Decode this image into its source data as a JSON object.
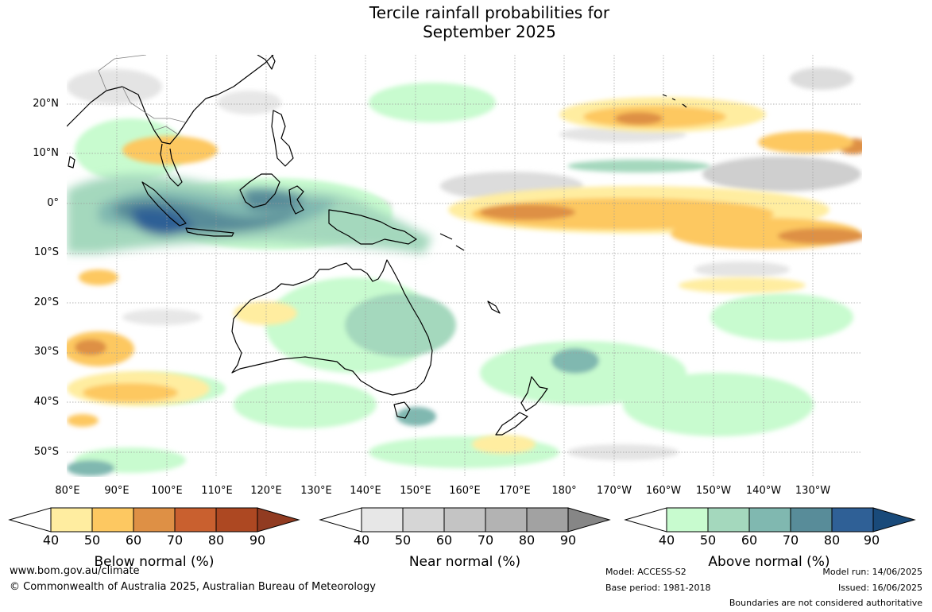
{
  "title_line1": "Tercile rainfall probabilities for",
  "title_line2": "September 2025",
  "lat_labels": [
    "20°N",
    "10°N",
    "0°",
    "10°S",
    "20°S",
    "30°S",
    "40°S",
    "50°S"
  ],
  "lon_labels": [
    "80°E",
    "90°E",
    "100°E",
    "110°E",
    "120°E",
    "130°E",
    "140°E",
    "150°E",
    "160°E",
    "170°E",
    "180°",
    "170°W",
    "160°W",
    "150°W",
    "140°W",
    "130°W"
  ],
  "colorbars": [
    {
      "id": "below",
      "title": "Below normal (%)",
      "ticks": [
        "40",
        "50",
        "60",
        "70",
        "80",
        "90"
      ],
      "colors": [
        "#ffeda0",
        "#fdc861",
        "#de9045",
        "#c9602f",
        "#ad4822",
        "#913b21"
      ]
    },
    {
      "id": "near",
      "title": "Near normal (%)",
      "ticks": [
        "40",
        "50",
        "60",
        "70",
        "80",
        "90"
      ],
      "colors": [
        "#e7e7e7",
        "#d6d6d6",
        "#c4c4c4",
        "#b3b3b3",
        "#a2a2a2",
        "#868686"
      ]
    },
    {
      "id": "above",
      "title": "Above normal (%)",
      "ticks": [
        "40",
        "50",
        "60",
        "70",
        "80",
        "90"
      ],
      "colors": [
        "#c8fbcf",
        "#a4d8bd",
        "#80b8b0",
        "#588c99",
        "#2f6096",
        "#194a7a"
      ]
    }
  ],
  "footer": {
    "website": "www.bom.gov.au/climate",
    "copyright": "© Commonwealth of Australia 2025, Australian Bureau of Meteorology",
    "model": "Model: ACCESS-S2",
    "base_period": "Base period: 1981-2018",
    "model_run": "Model run: 14/06/2025",
    "issued": "Issued: 16/06/2025",
    "disclaimer": "Boundaries are not considered authoritative"
  },
  "colors": {
    "coastline": "#000000",
    "border": "#808080",
    "gridline": "#9a9a9a"
  }
}
